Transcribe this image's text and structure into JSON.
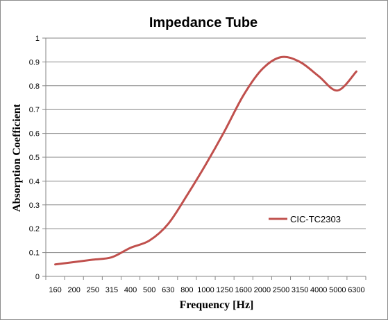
{
  "chart_data": {
    "type": "line",
    "title": "Impedance Tube",
    "xlabel": "Frequency [Hz]",
    "ylabel": "Absorption Coefficient",
    "categories": [
      "160",
      "200",
      "250",
      "315",
      "400",
      "500",
      "630",
      "800",
      "1000",
      "1250",
      "1600",
      "2000",
      "2500",
      "3150",
      "4000",
      "5000",
      "6300"
    ],
    "series": [
      {
        "name": "CIC-TC2303",
        "color": "#c0504d",
        "values": [
          0.05,
          0.06,
          0.07,
          0.08,
          0.12,
          0.15,
          0.22,
          0.34,
          0.47,
          0.61,
          0.76,
          0.87,
          0.92,
          0.9,
          0.84,
          0.78,
          0.86
        ]
      }
    ],
    "ylim": [
      0,
      1
    ],
    "yticks": [
      "0",
      "0.1",
      "0.2",
      "0.3",
      "0.4",
      "0.5",
      "0.6",
      "0.7",
      "0.8",
      "0.9",
      "1"
    ],
    "grid": true,
    "legend_position": "right"
  }
}
